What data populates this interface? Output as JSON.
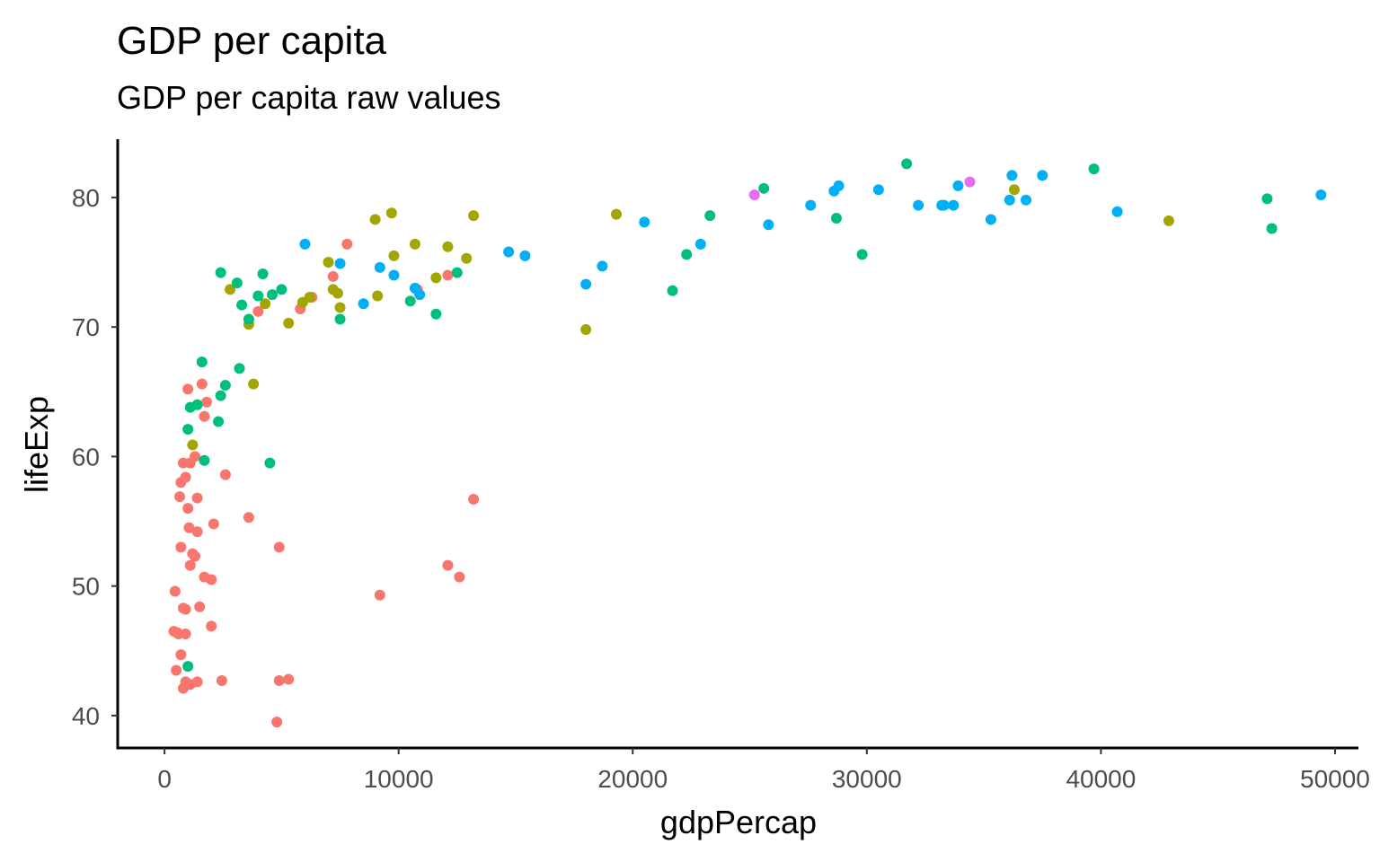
{
  "chart_data": {
    "type": "scatter",
    "title": "GDP per capita",
    "subtitle": "GDP per capita raw values",
    "xlabel": "gdpPercap",
    "ylabel": "lifeExp",
    "xlim": [
      -2000,
      51000
    ],
    "ylim": [
      37.5,
      84.5
    ],
    "xticks": [
      0,
      10000,
      20000,
      30000,
      40000,
      50000
    ],
    "yticks": [
      40,
      50,
      60,
      70,
      80
    ],
    "grid": false,
    "legend": "none",
    "series": [
      {
        "color": "#F8766D",
        "points": [
          [
            2450,
            42.7
          ],
          [
            4800,
            39.5
          ],
          [
            5300,
            42.8
          ],
          [
            400,
            46.5
          ],
          [
            500,
            43.5
          ],
          [
            800,
            42.1
          ],
          [
            900,
            42.6
          ],
          [
            1100,
            42.4
          ],
          [
            1400,
            42.6
          ],
          [
            700,
            44.7
          ],
          [
            550,
            46.4
          ],
          [
            600,
            46.3
          ],
          [
            900,
            46.3
          ],
          [
            450,
            49.6
          ],
          [
            800,
            48.3
          ],
          [
            900,
            48.2
          ],
          [
            1500,
            48.4
          ],
          [
            1700,
            50.7
          ],
          [
            2000,
            50.5
          ],
          [
            1100,
            51.6
          ],
          [
            2000,
            46.9
          ],
          [
            1200,
            52.5
          ],
          [
            1300,
            52.3
          ],
          [
            700,
            53.0
          ],
          [
            1050,
            54.5
          ],
          [
            1400,
            54.2
          ],
          [
            2100,
            54.8
          ],
          [
            1000,
            56.0
          ],
          [
            650,
            56.9
          ],
          [
            1400,
            56.8
          ],
          [
            3600,
            55.3
          ],
          [
            4900,
            53.0
          ],
          [
            700,
            58.0
          ],
          [
            900,
            58.4
          ],
          [
            2600,
            58.6
          ],
          [
            800,
            59.5
          ],
          [
            1100,
            59.5
          ],
          [
            1300,
            60.0
          ],
          [
            1700,
            63.1
          ],
          [
            1800,
            64.2
          ],
          [
            1000,
            65.2
          ],
          [
            1600,
            65.6
          ],
          [
            4000,
            71.2
          ],
          [
            5800,
            71.4
          ],
          [
            6300,
            72.3
          ],
          [
            7200,
            73.9
          ],
          [
            7800,
            76.4
          ],
          [
            10800,
            72.9
          ],
          [
            12100,
            74.0
          ],
          [
            12100,
            51.6
          ],
          [
            12600,
            50.7
          ],
          [
            9200,
            49.3
          ],
          [
            13200,
            56.7
          ],
          [
            4900,
            42.7
          ]
        ]
      },
      {
        "color": "#A3A500",
        "points": [
          [
            1200,
            60.9
          ],
          [
            3600,
            70.2
          ],
          [
            3800,
            65.6
          ],
          [
            2800,
            72.9
          ],
          [
            4300,
            71.8
          ],
          [
            5300,
            70.3
          ],
          [
            5900,
            71.9
          ],
          [
            6200,
            72.3
          ],
          [
            7000,
            75.0
          ],
          [
            7200,
            72.9
          ],
          [
            7400,
            72.6
          ],
          [
            7500,
            71.5
          ],
          [
            9100,
            72.4
          ],
          [
            9000,
            78.3
          ],
          [
            9700,
            78.8
          ],
          [
            9800,
            75.5
          ],
          [
            10700,
            76.4
          ],
          [
            11600,
            73.8
          ],
          [
            12100,
            76.2
          ],
          [
            12900,
            75.3
          ],
          [
            13200,
            78.6
          ],
          [
            18000,
            69.8
          ],
          [
            19300,
            78.7
          ],
          [
            36300,
            80.6
          ],
          [
            42900,
            78.2
          ]
        ]
      },
      {
        "color": "#00BF7D",
        "points": [
          [
            1000,
            43.8
          ],
          [
            1000,
            62.1
          ],
          [
            1100,
            63.8
          ],
          [
            1400,
            64.0
          ],
          [
            1600,
            67.3
          ],
          [
            1700,
            59.7
          ],
          [
            2300,
            62.7
          ],
          [
            2400,
            64.7
          ],
          [
            2600,
            65.5
          ],
          [
            3200,
            66.8
          ],
          [
            2400,
            74.2
          ],
          [
            3100,
            73.4
          ],
          [
            3300,
            71.7
          ],
          [
            3600,
            70.6
          ],
          [
            4000,
            72.4
          ],
          [
            4200,
            74.1
          ],
          [
            4600,
            72.5
          ],
          [
            5000,
            72.9
          ],
          [
            4500,
            59.5
          ],
          [
            7500,
            70.6
          ],
          [
            10500,
            72.0
          ],
          [
            11600,
            71.0
          ],
          [
            12500,
            74.2
          ],
          [
            21700,
            72.8
          ],
          [
            22300,
            75.6
          ],
          [
            23300,
            78.6
          ],
          [
            25600,
            80.7
          ],
          [
            28700,
            78.4
          ],
          [
            29800,
            75.6
          ],
          [
            31700,
            82.6
          ],
          [
            39700,
            82.2
          ],
          [
            47100,
            79.9
          ],
          [
            47300,
            77.6
          ]
        ]
      },
      {
        "color": "#00B0F6",
        "points": [
          [
            6000,
            76.4
          ],
          [
            7500,
            74.9
          ],
          [
            8500,
            71.8
          ],
          [
            9200,
            74.6
          ],
          [
            9800,
            74.0
          ],
          [
            10700,
            73.0
          ],
          [
            10900,
            72.5
          ],
          [
            14700,
            75.8
          ],
          [
            15400,
            75.5
          ],
          [
            18000,
            73.3
          ],
          [
            18700,
            74.7
          ],
          [
            20500,
            78.1
          ],
          [
            22900,
            76.4
          ],
          [
            25800,
            77.9
          ],
          [
            27600,
            79.4
          ],
          [
            28600,
            80.5
          ],
          [
            28800,
            80.9
          ],
          [
            30500,
            80.6
          ],
          [
            32200,
            79.4
          ],
          [
            33200,
            79.4
          ],
          [
            33300,
            79.4
          ],
          [
            33700,
            79.4
          ],
          [
            33900,
            80.9
          ],
          [
            35300,
            78.3
          ],
          [
            36100,
            79.8
          ],
          [
            36200,
            81.7
          ],
          [
            36800,
            79.8
          ],
          [
            37500,
            81.7
          ],
          [
            40700,
            78.9
          ],
          [
            49400,
            80.2
          ]
        ]
      },
      {
        "color": "#E76BF3",
        "points": [
          [
            25200,
            80.2
          ],
          [
            34400,
            81.2
          ]
        ]
      }
    ]
  }
}
